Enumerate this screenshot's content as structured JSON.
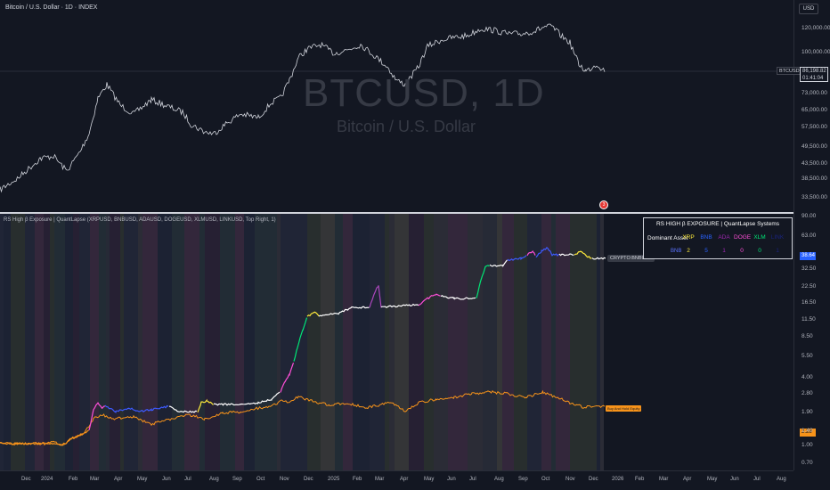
{
  "header": {
    "title": "Bitcoin / U.S. Dollar · 1D · INDEX",
    "currency_button": "USD"
  },
  "main_pane": {
    "watermark_symbol": "BTCUSD, 1D",
    "watermark_name": "Bitcoin / U.S. Dollar",
    "price_axis": [
      "120,000.00",
      "100,000.00",
      "73,000.00",
      "65,000.00",
      "57,500.00",
      "49,500.00",
      "43,500.00",
      "38,500.00",
      "33,500.00"
    ],
    "last_price_symbol": "BTCUSD",
    "last_price": "86,198.82",
    "countdown": "01:41:04"
  },
  "indicator_pane": {
    "title": "RS High β Exposure | QuantLapse (XRPUSD, BNBUSD, ADAUSD, DOGEUSD, XLMUSD, LINKUSD, Top Right, 1)",
    "price_axis": [
      "90.00",
      "63.00",
      "45.00",
      "32.50",
      "22.50",
      "16.50",
      "11.50",
      "8.50",
      "5.50",
      "4.00",
      "2.80",
      "1.90",
      "1.40",
      "1.00",
      "0.70"
    ],
    "tag_strategy": "38.64",
    "tag_buy_hold": "2.28",
    "label_strategy": "CRYPTO:BNBUSD",
    "label_buy_hold": "Buy And Hold Equity",
    "event_marker": "3",
    "table": {
      "title": "RS HIGH β EXPOSURE | QuantLapse Systems",
      "row_label": "Dominant Asset",
      "assets": [
        {
          "name": "XRP",
          "count": "2",
          "color": "#ffeb3b"
        },
        {
          "name": "BNB",
          "count": "5",
          "color": "#2962ff"
        },
        {
          "name": "ADA",
          "count": "1",
          "color": "#9c27b0"
        },
        {
          "name": "DOGE",
          "count": "0",
          "color": "#ff4fd8"
        },
        {
          "name": "XLM",
          "count": "0",
          "color": "#00e676"
        },
        {
          "name": "LINK",
          "count": "1",
          "color": "#1a237e"
        }
      ],
      "current": "BNB"
    }
  },
  "time_axis": [
    "Dec",
    "2024",
    "Feb",
    "Mar",
    "Apr",
    "May",
    "Jun",
    "Jul",
    "Aug",
    "Sep",
    "Oct",
    "Nov",
    "Dec",
    "2025",
    "Feb",
    "Mar",
    "Apr",
    "May",
    "Jun",
    "Jul",
    "Aug",
    "Sep",
    "Oct",
    "Nov",
    "Dec",
    "2026",
    "Feb",
    "Mar",
    "Apr",
    "May",
    "Jun",
    "Jul",
    "Aug"
  ],
  "colors": {
    "background": "#131722",
    "btc_line": "#d1d4dc",
    "buy_hold": "#f7931a",
    "strategy_default": "#ffffff"
  }
}
